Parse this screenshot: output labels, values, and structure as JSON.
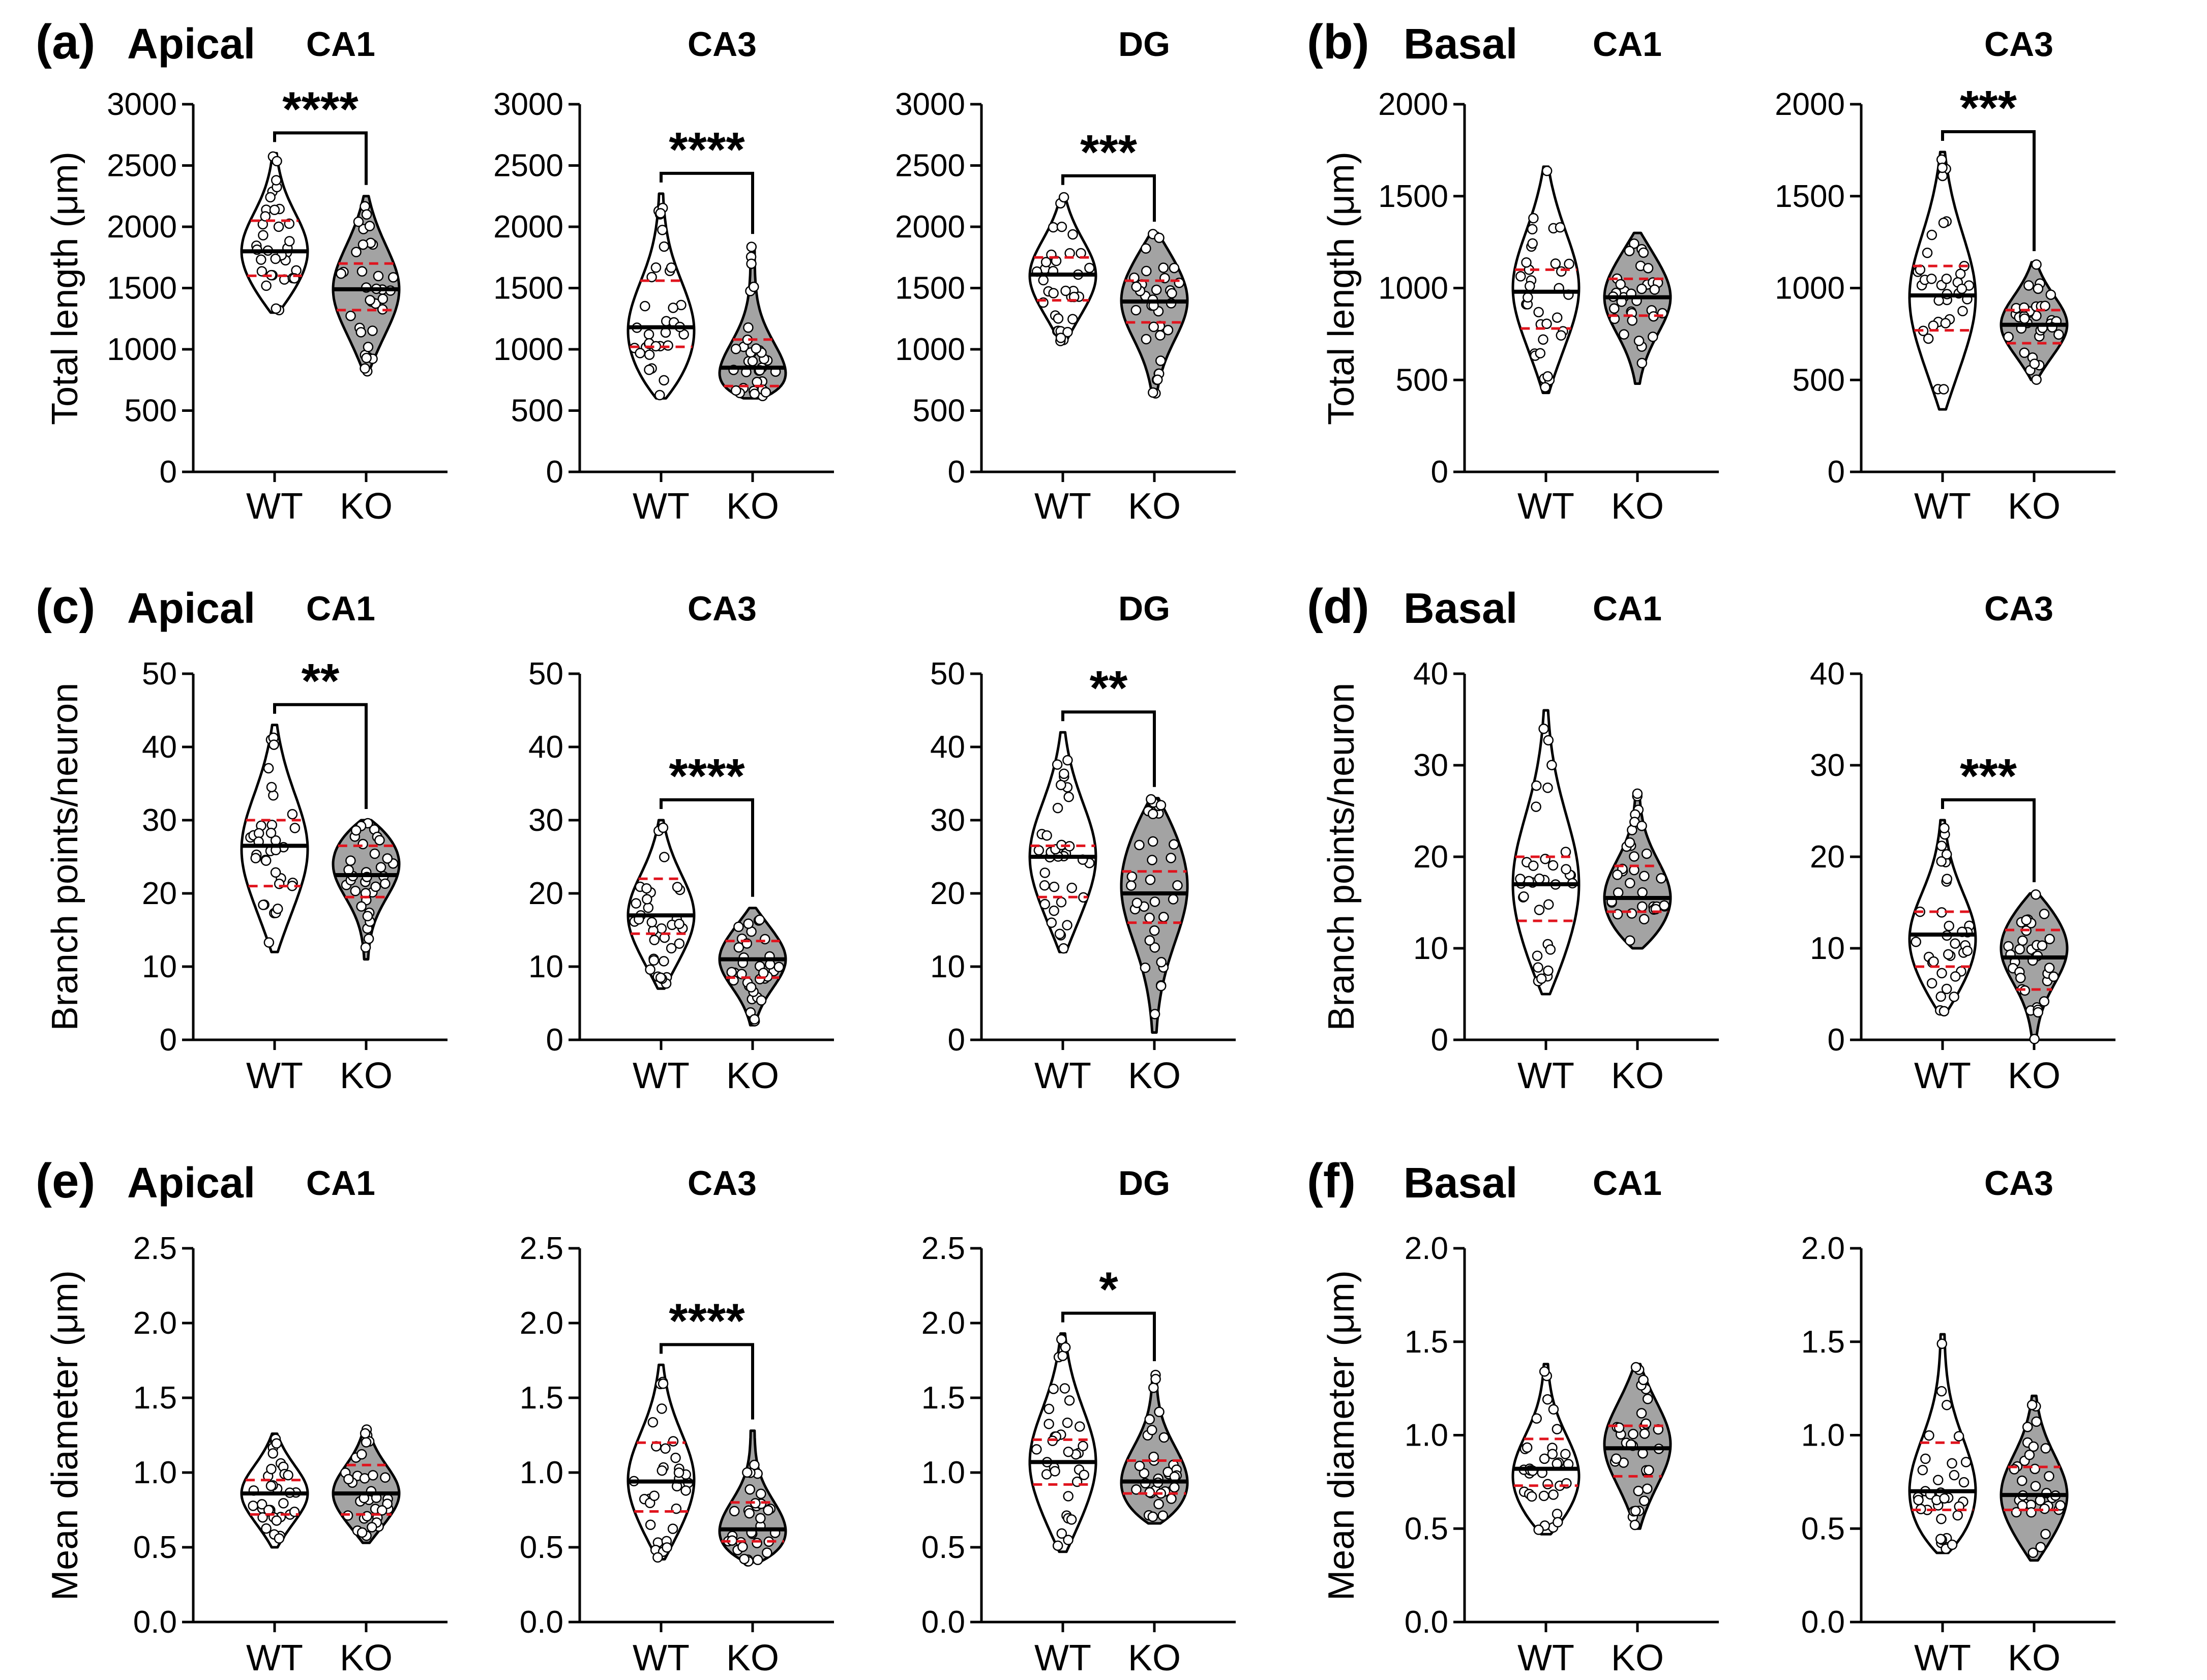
{
  "rows": [
    {
      "groups": [
        {
          "letter": "(a)",
          "region": "Apical",
          "ylabel": "Total length (μm)"
        },
        {
          "letter": "(b)",
          "region": "Basal",
          "ylabel": "Total length (μm)"
        }
      ]
    },
    {
      "groups": [
        {
          "letter": "(c)",
          "region": "Apical",
          "ylabel": "Branch points/neuron"
        },
        {
          "letter": "(d)",
          "region": "Basal",
          "ylabel": "Branch points/neuron"
        }
      ]
    },
    {
      "groups": [
        {
          "letter": "(e)",
          "region": "Apical",
          "ylabel": "Mean diameter (μm)"
        },
        {
          "letter": "(f)",
          "region": "Basal",
          "ylabel": "Mean diameter (μm)"
        }
      ]
    }
  ],
  "colors": {
    "wt_fill": "#ffffff",
    "ko_fill": "#a3a3a3",
    "quartile": "#e0141e",
    "median": "#000000"
  },
  "chart_data": [
    {
      "type": "violin",
      "panel": "a",
      "subtitle": "CA1",
      "categories": [
        "WT",
        "KO"
      ],
      "ylim": [
        0,
        3000
      ],
      "yticks": [
        "0",
        "500",
        "1000",
        "1500",
        "2000",
        "2500",
        "3000"
      ],
      "significance": "****",
      "series": [
        {
          "name": "WT",
          "min": 1300,
          "q1": 1600,
          "median": 1800,
          "q3": 2050,
          "max": 2600,
          "mode": 1800
        },
        {
          "name": "KO",
          "min": 820,
          "q1": 1320,
          "median": 1490,
          "q3": 1700,
          "max": 2250,
          "mode": 1490
        }
      ]
    },
    {
      "type": "violin",
      "panel": "a",
      "subtitle": "CA3",
      "categories": [
        "WT",
        "KO"
      ],
      "ylim": [
        0,
        3000
      ],
      "yticks": [
        "0",
        "500",
        "1000",
        "1500",
        "2000",
        "2500",
        "3000"
      ],
      "significance": "****",
      "series": [
        {
          "name": "WT",
          "min": 600,
          "q1": 1020,
          "median": 1180,
          "q3": 1560,
          "max": 2270,
          "mode": 1150
        },
        {
          "name": "KO",
          "min": 600,
          "q1": 700,
          "median": 850,
          "q3": 1080,
          "max": 1850,
          "mode": 750
        }
      ]
    },
    {
      "type": "violin",
      "panel": "a",
      "subtitle": "DG",
      "categories": [
        "WT",
        "KO"
      ],
      "ylim": [
        0,
        3000
      ],
      "yticks": [
        "0",
        "500",
        "1000",
        "1500",
        "2000",
        "2500",
        "3000"
      ],
      "significance": "***",
      "series": [
        {
          "name": "WT",
          "min": 1060,
          "q1": 1400,
          "median": 1610,
          "q3": 1750,
          "max": 2250,
          "mode": 1600
        },
        {
          "name": "KO",
          "min": 620,
          "q1": 1220,
          "median": 1390,
          "q3": 1560,
          "max": 1950,
          "mode": 1400
        }
      ]
    },
    {
      "type": "violin",
      "panel": "b",
      "subtitle": "CA1",
      "categories": [
        "WT",
        "KO"
      ],
      "ylim": [
        0,
        2000
      ],
      "yticks": [
        "0",
        "500",
        "1000",
        "1500",
        "2000"
      ],
      "significance": "",
      "series": [
        {
          "name": "WT",
          "min": 430,
          "q1": 780,
          "median": 980,
          "q3": 1100,
          "max": 1660,
          "mode": 1000
        },
        {
          "name": "KO",
          "min": 480,
          "q1": 850,
          "median": 950,
          "q3": 1050,
          "max": 1300,
          "mode": 950
        }
      ]
    },
    {
      "type": "violin",
      "panel": "b",
      "subtitle": "CA3",
      "categories": [
        "WT",
        "KO"
      ],
      "ylim": [
        0,
        2000
      ],
      "yticks": [
        "0",
        "500",
        "1000",
        "1500",
        "2000"
      ],
      "significance": "***",
      "series": [
        {
          "name": "WT",
          "min": 340,
          "q1": 770,
          "median": 960,
          "q3": 1120,
          "max": 1740,
          "mode": 950
        },
        {
          "name": "KO",
          "min": 500,
          "q1": 700,
          "median": 800,
          "q3": 880,
          "max": 1140,
          "mode": 800
        }
      ]
    },
    {
      "type": "violin",
      "panel": "c",
      "subtitle": "CA1",
      "categories": [
        "WT",
        "KO"
      ],
      "ylim": [
        0,
        50
      ],
      "yticks": [
        "0",
        "10",
        "20",
        "30",
        "40",
        "50"
      ],
      "significance": "**",
      "series": [
        {
          "name": "WT",
          "min": 12,
          "q1": 21,
          "median": 26.5,
          "q3": 30,
          "max": 43,
          "mode": 26
        },
        {
          "name": "KO",
          "min": 11,
          "q1": 19.5,
          "median": 22.5,
          "q3": 26.5,
          "max": 30,
          "mode": 24
        }
      ]
    },
    {
      "type": "violin",
      "panel": "c",
      "subtitle": "CA3",
      "categories": [
        "WT",
        "KO"
      ],
      "ylim": [
        0,
        50
      ],
      "yticks": [
        "0",
        "10",
        "20",
        "30",
        "40",
        "50"
      ],
      "significance": "****",
      "series": [
        {
          "name": "WT",
          "min": 7,
          "q1": 14.5,
          "median": 17,
          "q3": 22,
          "max": 30,
          "mode": 17
        },
        {
          "name": "KO",
          "min": 2,
          "q1": 8.5,
          "median": 11,
          "q3": 13.5,
          "max": 18,
          "mode": 11
        }
      ]
    },
    {
      "type": "violin",
      "panel": "c",
      "subtitle": "DG",
      "categories": [
        "WT",
        "KO"
      ],
      "ylim": [
        0,
        50
      ],
      "yticks": [
        "0",
        "10",
        "20",
        "30",
        "40",
        "50"
      ],
      "significance": "**",
      "series": [
        {
          "name": "WT",
          "min": 12,
          "q1": 19.5,
          "median": 25,
          "q3": 26.5,
          "max": 42,
          "mode": 25
        },
        {
          "name": "KO",
          "min": 1,
          "q1": 16,
          "median": 20,
          "q3": 23,
          "max": 33,
          "mode": 21
        }
      ]
    },
    {
      "type": "violin",
      "panel": "d",
      "subtitle": "CA1",
      "categories": [
        "WT",
        "KO"
      ],
      "ylim": [
        0,
        40
      ],
      "yticks": [
        "0",
        "10",
        "20",
        "30",
        "40"
      ],
      "significance": "",
      "series": [
        {
          "name": "WT",
          "min": 5,
          "q1": 13,
          "median": 17,
          "q3": 20,
          "max": 36,
          "mode": 17
        },
        {
          "name": "KO",
          "min": 10,
          "q1": 14,
          "median": 15.5,
          "q3": 19,
          "max": 27,
          "mode": 15.5
        }
      ]
    },
    {
      "type": "violin",
      "panel": "d",
      "subtitle": "CA3",
      "categories": [
        "WT",
        "KO"
      ],
      "ylim": [
        0,
        40
      ],
      "yticks": [
        "0",
        "10",
        "20",
        "30",
        "40"
      ],
      "significance": "***",
      "series": [
        {
          "name": "WT",
          "min": 3,
          "q1": 8,
          "median": 11.5,
          "q3": 14,
          "max": 24,
          "mode": 11
        },
        {
          "name": "KO",
          "min": 0,
          "q1": 5.5,
          "median": 9,
          "q3": 12,
          "max": 16,
          "mode": 10
        }
      ]
    },
    {
      "type": "violin",
      "panel": "e",
      "subtitle": "CA1",
      "categories": [
        "WT",
        "KO"
      ],
      "ylim": [
        0,
        2.5
      ],
      "yticks": [
        "0.0",
        "0.5",
        "1.0",
        "1.5",
        "2.0",
        "2.5"
      ],
      "significance": "",
      "series": [
        {
          "name": "WT",
          "min": 0.5,
          "q1": 0.72,
          "median": 0.86,
          "q3": 0.95,
          "max": 1.26,
          "mode": 0.86
        },
        {
          "name": "KO",
          "min": 0.53,
          "q1": 0.72,
          "median": 0.86,
          "q3": 1.05,
          "max": 1.3,
          "mode": 0.86
        }
      ]
    },
    {
      "type": "violin",
      "panel": "e",
      "subtitle": "CA3",
      "categories": [
        "WT",
        "KO"
      ],
      "ylim": [
        0,
        2.5
      ],
      "yticks": [
        "0.0",
        "0.5",
        "1.0",
        "1.5",
        "2.0",
        "2.5"
      ],
      "significance": "****",
      "series": [
        {
          "name": "WT",
          "min": 0.42,
          "q1": 0.74,
          "median": 0.94,
          "q3": 1.2,
          "max": 1.72,
          "mode": 0.95
        },
        {
          "name": "KO",
          "min": 0.4,
          "q1": 0.54,
          "median": 0.62,
          "q3": 0.8,
          "max": 1.28,
          "mode": 0.6
        }
      ]
    },
    {
      "type": "violin",
      "panel": "e",
      "subtitle": "DG",
      "categories": [
        "WT",
        "KO"
      ],
      "ylim": [
        0,
        2.5
      ],
      "yticks": [
        "0.0",
        "0.5",
        "1.0",
        "1.5",
        "2.0",
        "2.5"
      ],
      "significance": "*",
      "series": [
        {
          "name": "WT",
          "min": 0.47,
          "q1": 0.92,
          "median": 1.07,
          "q3": 1.22,
          "max": 1.93,
          "mode": 1.07
        },
        {
          "name": "KO",
          "min": 0.66,
          "q1": 0.86,
          "median": 0.94,
          "q3": 1.08,
          "max": 1.67,
          "mode": 0.93
        }
      ]
    },
    {
      "type": "violin",
      "panel": "f",
      "subtitle": "CA1",
      "categories": [
        "WT",
        "KO"
      ],
      "ylim": [
        0,
        2.0
      ],
      "yticks": [
        "0.0",
        "0.5",
        "1.0",
        "1.5",
        "2.0"
      ],
      "significance": "",
      "series": [
        {
          "name": "WT",
          "min": 0.47,
          "q1": 0.73,
          "median": 0.82,
          "q3": 0.98,
          "max": 1.38,
          "mode": 0.78
        },
        {
          "name": "KO",
          "min": 0.5,
          "q1": 0.78,
          "median": 0.93,
          "q3": 1.05,
          "max": 1.38,
          "mode": 0.95
        }
      ]
    },
    {
      "type": "violin",
      "panel": "f",
      "subtitle": "CA3",
      "categories": [
        "WT",
        "KO"
      ],
      "ylim": [
        0,
        2.0
      ],
      "yticks": [
        "0.0",
        "0.5",
        "1.0",
        "1.5",
        "2.0"
      ],
      "significance": "",
      "series": [
        {
          "name": "WT",
          "min": 0.37,
          "q1": 0.6,
          "median": 0.7,
          "q3": 0.96,
          "max": 1.54,
          "mode": 0.7
        },
        {
          "name": "KO",
          "min": 0.33,
          "q1": 0.6,
          "median": 0.68,
          "q3": 0.83,
          "max": 1.21,
          "mode": 0.68
        }
      ]
    }
  ]
}
